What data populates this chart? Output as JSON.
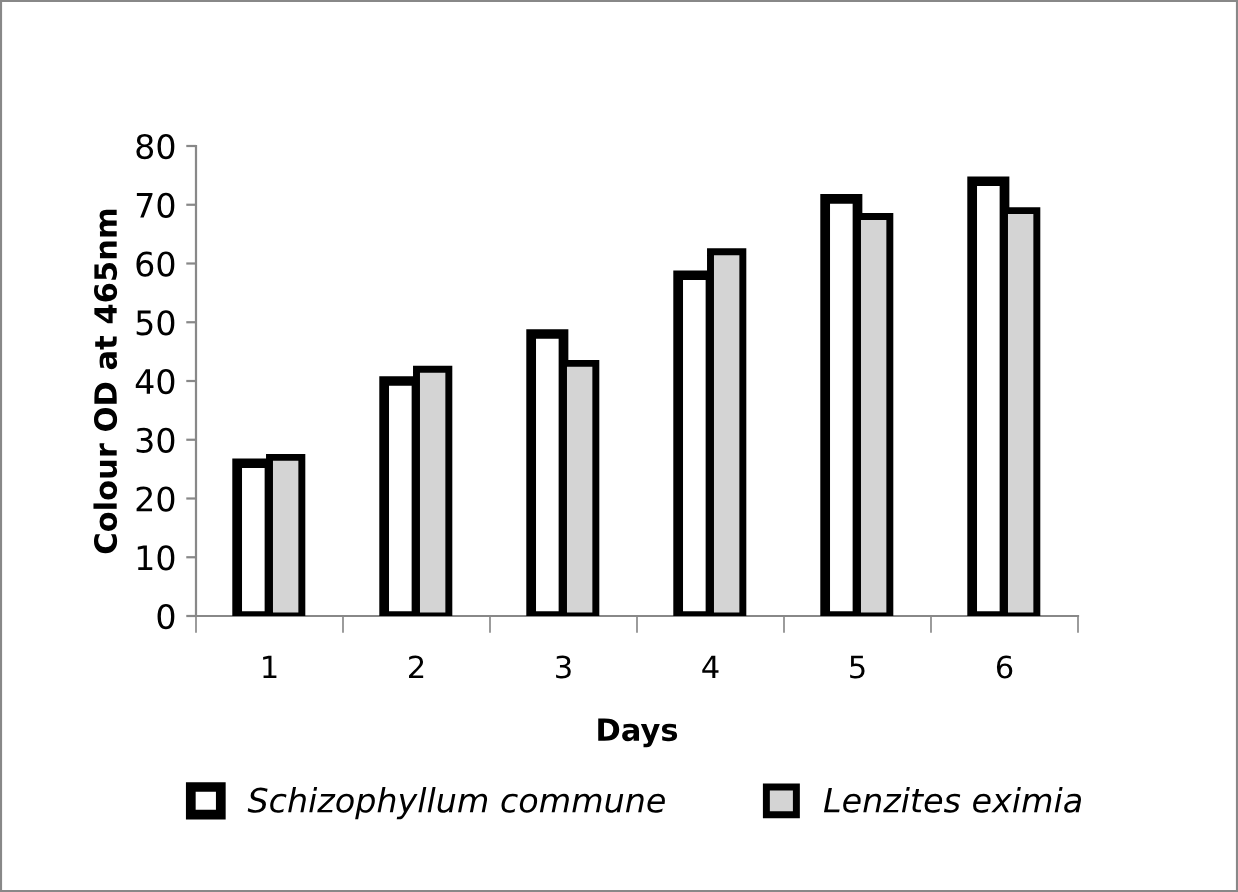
{
  "chart_data": {
    "type": "bar",
    "xlabel": "Days",
    "ylabel": "Colour OD at 465nm",
    "categories": [
      "1",
      "2",
      "3",
      "4",
      "5",
      "6"
    ],
    "series": [
      {
        "name": "Schizophyllum commune",
        "color": "#ffffff",
        "values": [
          26,
          40,
          48,
          58,
          71,
          74
        ]
      },
      {
        "name": "Lenzites eximia",
        "color": "#d4d4d4",
        "values": [
          27,
          42,
          43,
          62,
          68,
          69
        ]
      }
    ],
    "ylim": [
      0,
      80
    ],
    "yticks": [
      0,
      10,
      20,
      30,
      40,
      50,
      60,
      70,
      80
    ],
    "grid": false,
    "legend": "bottom"
  }
}
